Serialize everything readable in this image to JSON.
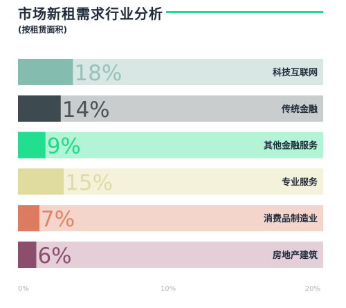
{
  "header": {
    "title": "市场新租需求行业分析",
    "subtitle": "(按租赁面积)"
  },
  "chart_data": {
    "type": "bar",
    "orientation": "horizontal",
    "title": "市场新租需求行业分析",
    "subtitle": "(按租赁面积)",
    "categories": [
      "科技互联网",
      "传统金融",
      "其他金融服务",
      "专业服务",
      "消费品制造业",
      "房地产建筑"
    ],
    "values": [
      18,
      14,
      9,
      15,
      7,
      6
    ],
    "value_labels": [
      "18%",
      "14%",
      "9%",
      "15%",
      "7%",
      "6%"
    ],
    "unit": "%",
    "xlim": [
      0,
      100
    ],
    "x_ticks": [
      0,
      10,
      20
    ],
    "x_tick_labels": [
      "0%",
      "10%",
      "20%"
    ],
    "grid": false,
    "legend": "none",
    "colors": {
      "bars": [
        "#84bcb0",
        "#3d4a50",
        "#22df90",
        "#dfdc9e",
        "#dc7b5f",
        "#8c4e6d"
      ],
      "tracks": [
        "#d8e7e4",
        "#c9cdcd",
        "#b3f4d7",
        "#f5f2db",
        "#f4d5cb",
        "#e4cfd9"
      ],
      "labels": [
        "#95c3b8",
        "#4a5257",
        "#22d987",
        "#dedba5",
        "#e08566",
        "#8c4e6d"
      ],
      "category_text": "#1f2b3a",
      "tick_text": "#b5b5b5"
    }
  }
}
